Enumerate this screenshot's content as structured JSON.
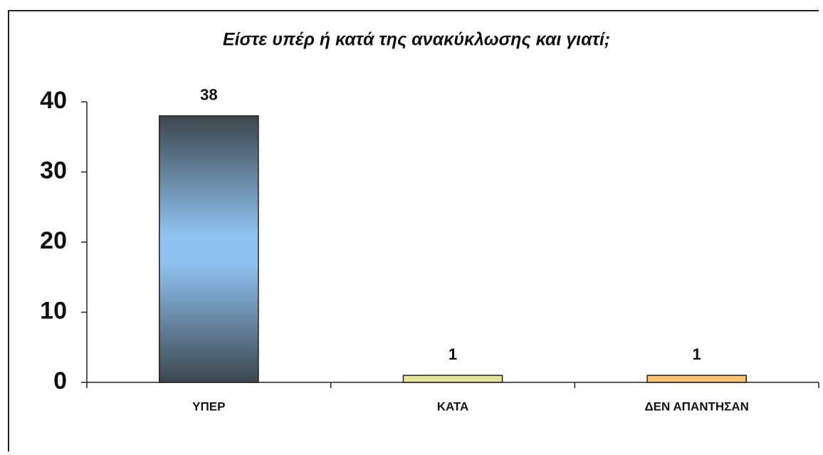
{
  "chart_data": {
    "type": "bar",
    "title": "Είστε υπέρ ή κατά της ανακύκλωσης και γιατί;",
    "categories": [
      "ΥΠΕΡ",
      "ΚΑΤΑ",
      "ΔΕΝ ΑΠΑΝΤΗΣΑΝ"
    ],
    "values": [
      38,
      1,
      1
    ],
    "colors": [
      "#8fc4f2",
      "#e4e49c",
      "#f5c374"
    ],
    "ylim": [
      0,
      40
    ],
    "yticks": [
      0,
      10,
      20,
      30,
      40
    ],
    "grid": false
  }
}
